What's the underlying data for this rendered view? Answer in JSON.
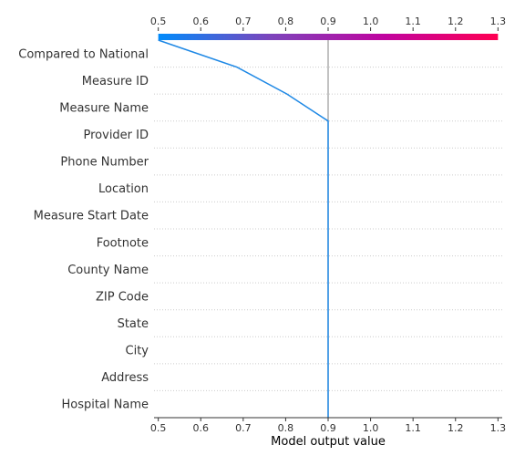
{
  "chart_data": {
    "type": "line",
    "title": "",
    "xlabel": "Model output value",
    "ylabel": "",
    "xlim": [
      0.49,
      1.31
    ],
    "xticks": [
      0.5,
      0.6,
      0.7,
      0.8,
      0.9,
      1.0,
      1.1,
      1.2,
      1.3
    ],
    "xtick_labels": [
      "0.5",
      "0.6",
      "0.7",
      "0.8",
      "0.9",
      "1.0",
      "1.1",
      "1.2",
      "1.3"
    ],
    "base_value": 0.9,
    "colorbar_range": [
      0.5,
      1.3
    ],
    "colorbar_colors": [
      "#008bfb",
      "#7d44bb",
      "#c0049f",
      "#ff0052"
    ],
    "line_color": "#1e88e5",
    "reference_line_color": "#999999",
    "grid": "dotted horizontal",
    "features": [
      "Compared to National",
      "Measure ID",
      "Measure Name",
      "Provider ID",
      "Phone Number",
      "Location",
      "Measure Start Date",
      "Footnote",
      "County Name",
      "ZIP Code",
      "State",
      "City",
      "Address",
      "Hospital Name"
    ],
    "series": [
      {
        "values": [
          0.5,
          0.685,
          0.803,
          0.9,
          0.9,
          0.9,
          0.9,
          0.9,
          0.9,
          0.9,
          0.9,
          0.9,
          0.9,
          0.9,
          0.9
        ]
      }
    ]
  }
}
